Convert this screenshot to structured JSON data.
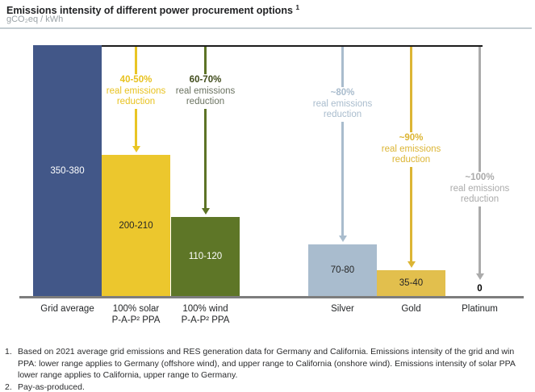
{
  "header": {
    "title": "Emissions intensity of different power procurement options",
    "title_footnote_ref": "1",
    "unit_label": "gCO₂eq / kWh"
  },
  "chart_data": {
    "type": "bar",
    "title": "Emissions intensity of different power procurement options",
    "ylabel": "gCO2eq / kWh",
    "ylim": [
      0,
      380
    ],
    "grid": false,
    "legend": "none",
    "categories": [
      "Grid average",
      "100% solar P-A-P² PPA",
      "100% wind P-A-P² PPA",
      "Silver",
      "Gold",
      "Platinum"
    ],
    "bars": [
      {
        "category_lines": [
          "Grid average"
        ],
        "value_label": "350-380",
        "value_range": [
          350,
          380
        ],
        "color": "#425788",
        "label_color": "#ffffff"
      },
      {
        "category_lines": [
          "100% solar",
          "P-A-P² PPA"
        ],
        "value_label": "200-210",
        "value_range": [
          200,
          210
        ],
        "color": "#ecc72d",
        "label_color": "#262626"
      },
      {
        "category_lines": [
          "100% wind",
          "P-A-P² PPA"
        ],
        "value_label": "110-120",
        "value_range": [
          110,
          120
        ],
        "color": "#5e7627",
        "label_color": "#ffffff"
      },
      {
        "category_lines": [
          "Silver"
        ],
        "value_label": "70-80",
        "value_range": [
          70,
          80
        ],
        "color": "#a9bcce",
        "label_color": "#262626"
      },
      {
        "category_lines": [
          "Gold"
        ],
        "value_label": "35-40",
        "value_range": [
          35,
          40
        ],
        "color": "#e2bf4d",
        "label_color": "#262626"
      },
      {
        "category_lines": [
          "Platinum"
        ],
        "value_label": "0",
        "value_range": [
          0,
          0
        ],
        "color": null,
        "label_color": "#000000"
      }
    ],
    "annotations": [
      {
        "target": "100% solar P-A-P² PPA",
        "headline": "40-50%",
        "subtext": "real emissions reduction",
        "arrow_color": "#e9c524",
        "headline_color": "#e8c21f",
        "subtext_color": "#e8c21f"
      },
      {
        "target": "100% wind P-A-P² PPA",
        "headline": "60-70%",
        "subtext": "real emissions reduction",
        "arrow_color": "#5d7326",
        "headline_color": "#414c1c",
        "subtext_color": "#6a7260"
      },
      {
        "target": "Silver",
        "headline": "~80%",
        "subtext": "real emissions reduction",
        "arrow_color": "#a9bccd",
        "headline_color": "#a9bccd",
        "subtext_color": "#a9bccd"
      },
      {
        "target": "Gold",
        "headline": "~90%",
        "subtext": "real emissions reduction",
        "arrow_color": "#dcb534",
        "headline_color": "#dcb534",
        "subtext_color": "#dcb534"
      },
      {
        "target": "Platinum",
        "headline": "~100%",
        "subtext": "real emissions reduction",
        "arrow_color": "#ababab",
        "headline_color": "#ababab",
        "subtext_color": "#ababab"
      }
    ],
    "reference_line_color": "#1c1c1c",
    "baseline_color": "#7d7d7d"
  },
  "footnotes": {
    "items": [
      {
        "marker": "1.",
        "lines": [
          "Based on 2021 average grid emissions and RES generation data for Germany and California. Emissions intensity of the grid and win",
          "PPA: lower range applies to Germany (offshore wind), and upper range to California (onshore wind). Emissions intensity of solar PPA",
          "lower range applies to California, upper range to Germany."
        ]
      },
      {
        "marker": "2.",
        "lines": [
          "Pay-as-produced."
        ]
      }
    ]
  }
}
